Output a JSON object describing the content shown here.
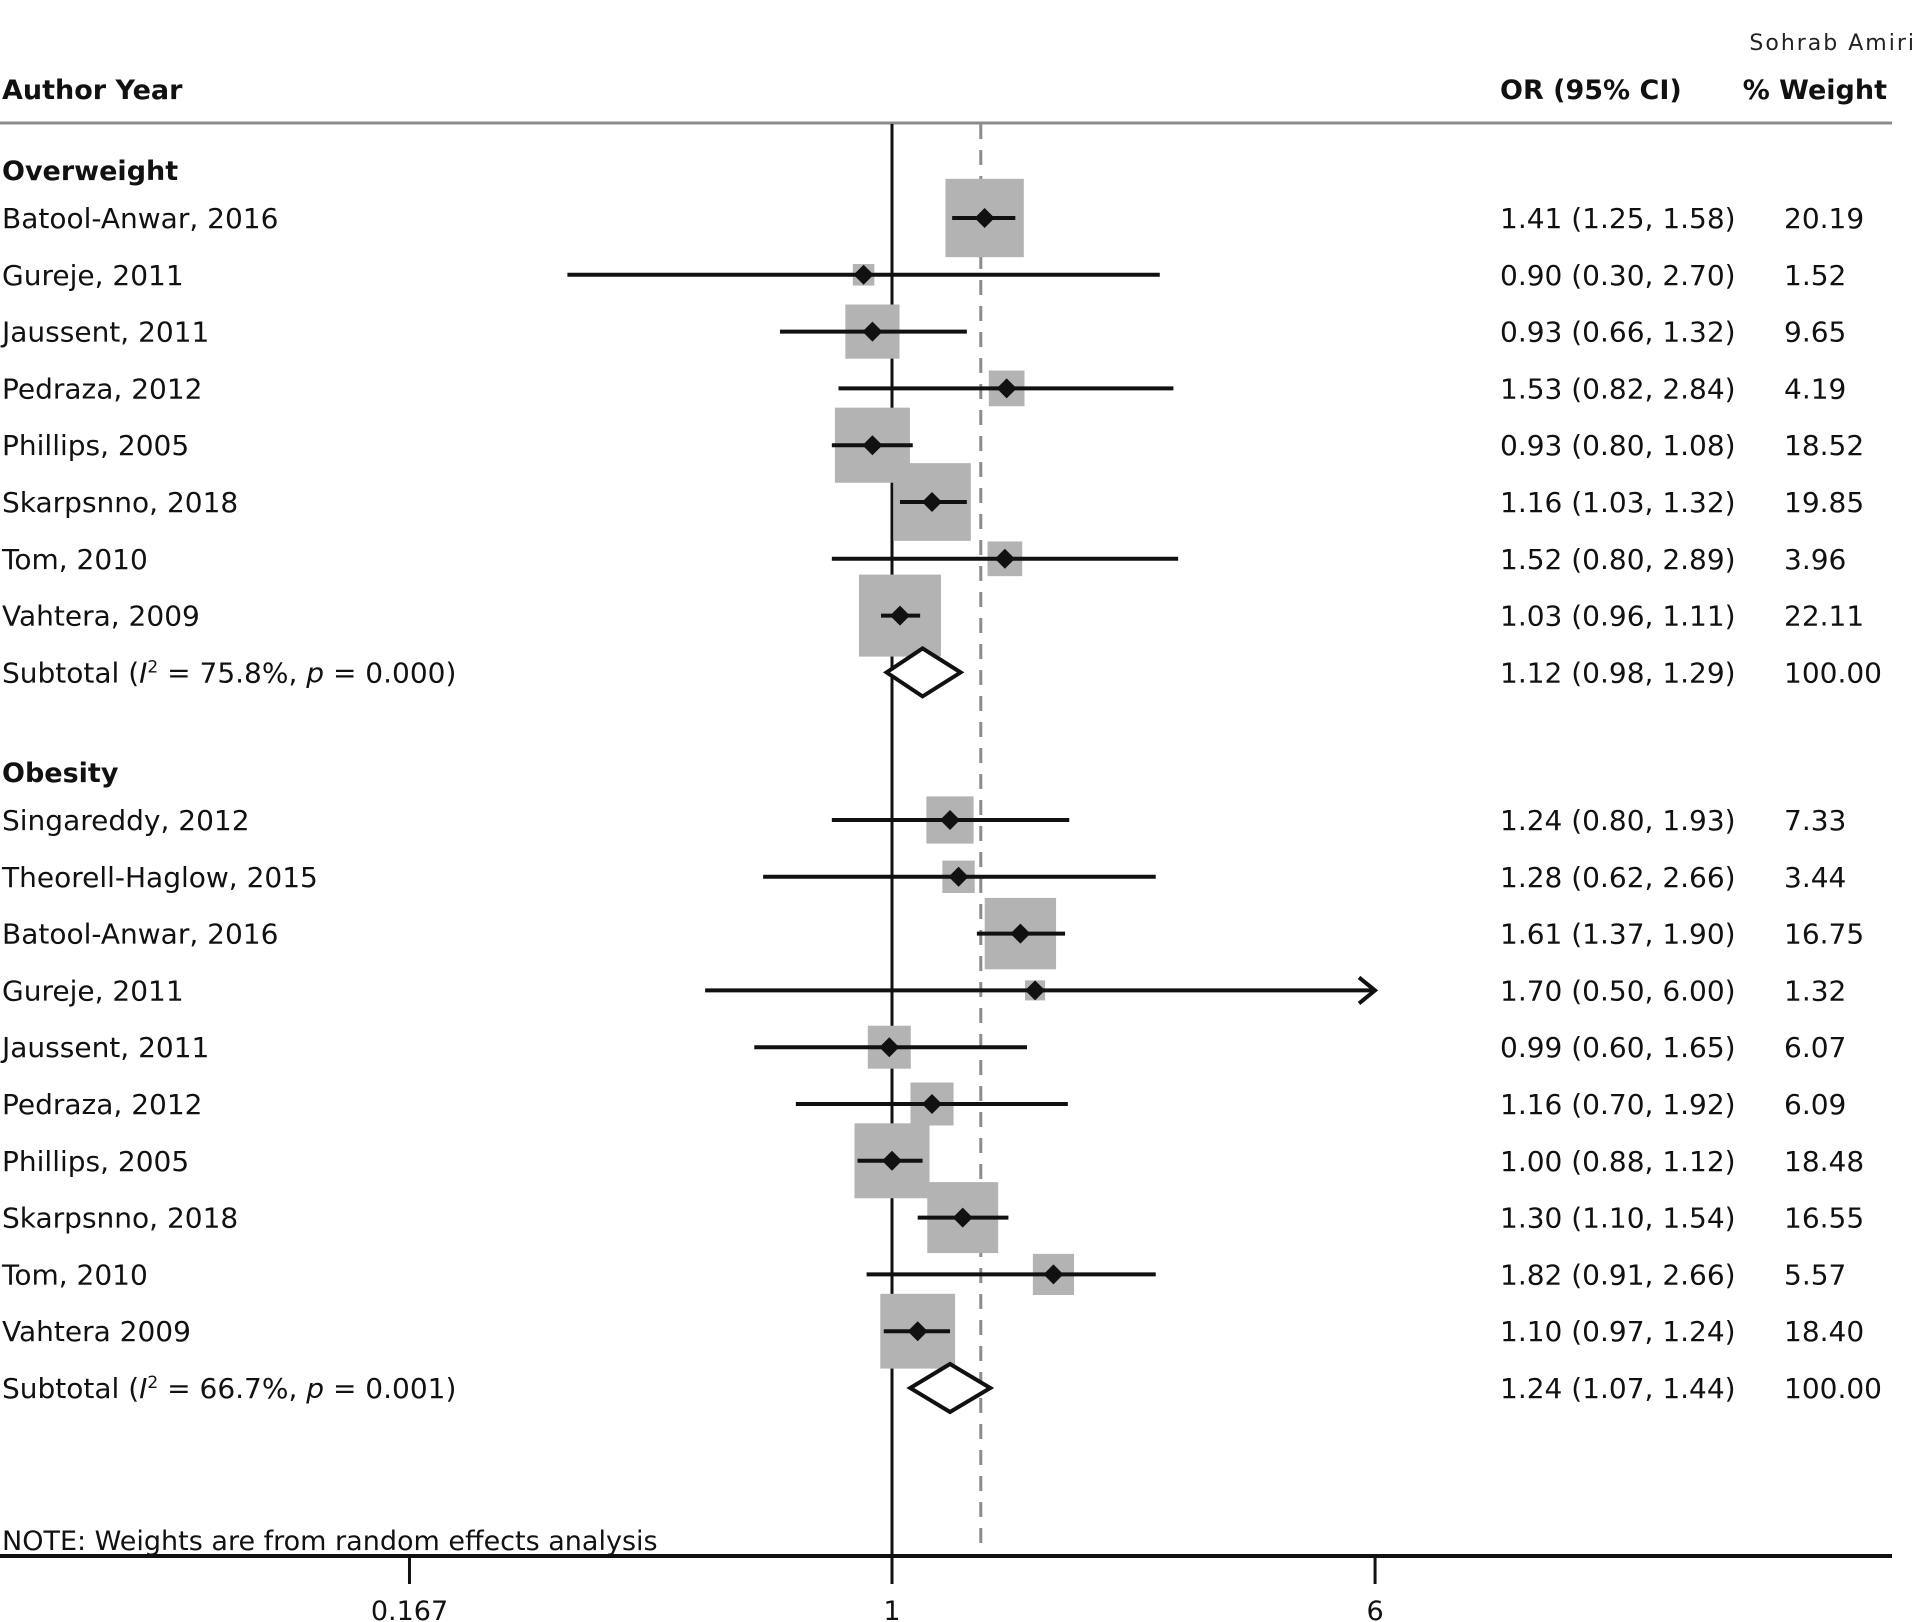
{
  "credit": "Sohrab Amiri",
  "chart_data": {
    "type": "forest",
    "scale": "log",
    "columns": {
      "study": "Author Year",
      "effect": "OR (95% CI)",
      "weight": "% Weight"
    },
    "null_value": 1,
    "reference_line_or": 1.39,
    "x_ticks": [
      {
        "value": 0.167,
        "label": "0.167"
      },
      {
        "value": 1,
        "label": "1"
      },
      {
        "value": 6,
        "label": "6"
      }
    ],
    "note": "NOTE: Weights are from random effects analysis",
    "groups": [
      {
        "name": "Overweight",
        "studies": [
          {
            "label": "Batool-Anwar, 2016",
            "or": 1.41,
            "lo": 1.25,
            "hi": 1.58,
            "ci_text": "1.41 (1.25, 1.58)",
            "weight": 20.19,
            "weight_text": "20.19"
          },
          {
            "label": "Gureje, 2011",
            "or": 0.9,
            "lo": 0.3,
            "hi": 2.7,
            "ci_text": "0.90 (0.30, 2.70)",
            "weight": 1.52,
            "weight_text": "1.52"
          },
          {
            "label": "Jaussent, 2011",
            "or": 0.93,
            "lo": 0.66,
            "hi": 1.32,
            "ci_text": "0.93 (0.66, 1.32)",
            "weight": 9.65,
            "weight_text": "9.65"
          },
          {
            "label": "Pedraza, 2012",
            "or": 1.53,
            "lo": 0.82,
            "hi": 2.84,
            "ci_text": "1.53 (0.82, 2.84)",
            "weight": 4.19,
            "weight_text": "4.19"
          },
          {
            "label": "Phillips, 2005",
            "or": 0.93,
            "lo": 0.8,
            "hi": 1.08,
            "ci_text": "0.93 (0.80, 1.08)",
            "weight": 18.52,
            "weight_text": "18.52"
          },
          {
            "label": "Skarpsnno, 2018",
            "or": 1.16,
            "lo": 1.03,
            "hi": 1.32,
            "ci_text": "1.16 (1.03, 1.32)",
            "weight": 19.85,
            "weight_text": "19.85"
          },
          {
            "label": "Tom, 2010",
            "or": 1.52,
            "lo": 0.8,
            "hi": 2.89,
            "ci_text": "1.52 (0.80, 2.89)",
            "weight": 3.96,
            "weight_text": "3.96"
          },
          {
            "label": "Vahtera, 2009",
            "or": 1.03,
            "lo": 0.96,
            "hi": 1.11,
            "ci_text": "1.03 (0.96, 1.11)",
            "weight": 22.11,
            "weight_text": "22.11"
          }
        ],
        "subtotal": {
          "label_prefix": "Subtotal (",
          "i2_symbol": "I",
          "i2_sup": "2",
          "i2_text": " = 75.8%, ",
          "p_symbol": "p",
          "p_text": " = 0.000)",
          "or": 1.12,
          "lo": 0.98,
          "hi": 1.29,
          "ci_text": "1.12 (0.98, 1.29)",
          "weight_text": "100.00"
        }
      },
      {
        "name": "Obesity",
        "studies": [
          {
            "label": "Singareddy, 2012",
            "or": 1.24,
            "lo": 0.8,
            "hi": 1.93,
            "ci_text": "1.24 (0.80, 1.93)",
            "weight": 7.33,
            "weight_text": "7.33"
          },
          {
            "label": "Theorell-Haglow, 2015",
            "or": 1.28,
            "lo": 0.62,
            "hi": 2.66,
            "ci_text": "1.28 (0.62, 2.66)",
            "weight": 3.44,
            "weight_text": "3.44"
          },
          {
            "label": "Batool-Anwar, 2016",
            "or": 1.61,
            "lo": 1.37,
            "hi": 1.9,
            "ci_text": "1.61 (1.37, 1.90)",
            "weight": 16.75,
            "weight_text": "16.75"
          },
          {
            "label": "Gureje, 2011",
            "or": 1.7,
            "lo": 0.5,
            "hi": 6.0,
            "ci_text": "1.70 (0.50, 6.00)",
            "weight": 1.32,
            "weight_text": "1.32",
            "arrow_right": true
          },
          {
            "label": "Jaussent, 2011",
            "or": 0.99,
            "lo": 0.6,
            "hi": 1.65,
            "ci_text": "0.99 (0.60, 1.65)",
            "weight": 6.07,
            "weight_text": "6.07"
          },
          {
            "label": "Pedraza, 2012",
            "or": 1.16,
            "lo": 0.7,
            "hi": 1.92,
            "ci_text": "1.16 (0.70, 1.92)",
            "weight": 6.09,
            "weight_text": "6.09"
          },
          {
            "label": "Phillips, 2005",
            "or": 1.0,
            "lo": 0.88,
            "hi": 1.12,
            "ci_text": "1.00 (0.88, 1.12)",
            "weight": 18.48,
            "weight_text": "18.48"
          },
          {
            "label": "Skarpsnno, 2018",
            "or": 1.3,
            "lo": 1.1,
            "hi": 1.54,
            "ci_text": "1.30 (1.10, 1.54)",
            "weight": 16.55,
            "weight_text": "16.55"
          },
          {
            "label": "Tom, 2010",
            "or": 1.82,
            "lo": 0.91,
            "hi": 2.66,
            "ci_text": "1.82 (0.91, 2.66)",
            "weight": 5.57,
            "weight_text": "5.57"
          },
          {
            "label": "Vahtera 2009",
            "or": 1.1,
            "lo": 0.97,
            "hi": 1.24,
            "ci_text": "1.10 (0.97, 1.24)",
            "weight": 18.4,
            "weight_text": "18.40"
          }
        ],
        "subtotal": {
          "label_prefix": "Subtotal (",
          "i2_symbol": "I",
          "i2_sup": "2",
          "i2_text": " = 66.7%, ",
          "p_symbol": "p",
          "p_text": " = 0.001)",
          "or": 1.24,
          "lo": 1.07,
          "hi": 1.44,
          "ci_text": "1.24 (1.07, 1.44)",
          "weight_text": "100.00"
        }
      }
    ]
  }
}
